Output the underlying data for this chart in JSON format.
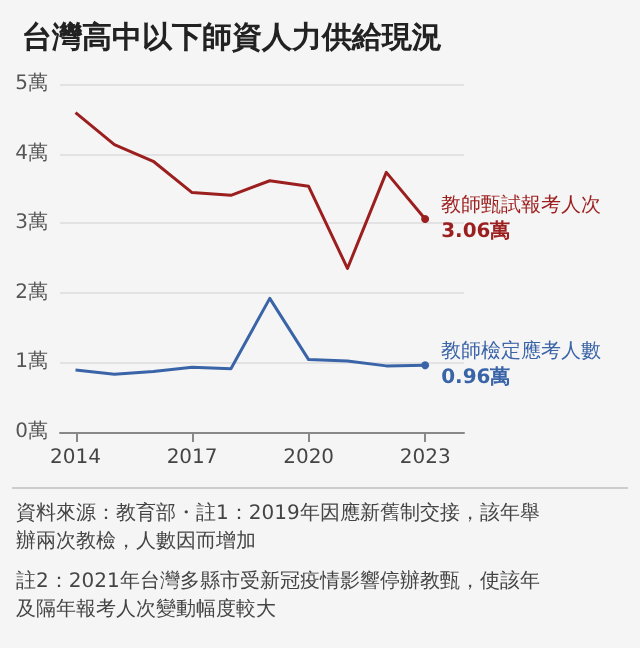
{
  "chart_data": {
    "type": "line",
    "title": "台灣高中以下師資人力供給現況",
    "x": [
      2014,
      2015,
      2016,
      2017,
      2018,
      2019,
      2020,
      2021,
      2022,
      2023
    ],
    "series": [
      {
        "name": "教師甄試報考人次",
        "color": "#9c1f1f",
        "values": [
          4.59,
          4.13,
          3.89,
          3.44,
          3.4,
          3.61,
          3.53,
          2.35,
          3.73,
          3.06
        ],
        "value_labels": [
          null,
          null,
          null,
          null,
          null,
          null,
          null,
          null,
          null,
          "3.06萬"
        ]
      },
      {
        "name": "教師檢定應考人數",
        "color": "#3a64a8",
        "values": [
          0.89,
          0.83,
          0.87,
          0.93,
          0.91,
          1.92,
          1.04,
          1.02,
          0.95,
          0.96
        ],
        "value_labels": [
          null,
          null,
          null,
          null,
          null,
          null,
          null,
          null,
          null,
          "0.96萬"
        ]
      }
    ],
    "xlim": [
      2013.6,
      2024
    ],
    "xticks": [
      2014,
      2017,
      2020,
      2023
    ],
    "ylim": [
      0,
      5
    ],
    "yticks": [
      {
        "value": 0,
        "label": "0萬"
      },
      {
        "value": 1,
        "label": "1萬"
      },
      {
        "value": 2,
        "label": "2萬"
      },
      {
        "value": 3,
        "label": "3萬"
      },
      {
        "value": 4,
        "label": "4萬"
      },
      {
        "value": 5,
        "label": "5萬"
      }
    ],
    "grid": "y",
    "legend": false,
    "annotations": [
      "資料來源：教育部・註1：2019年因應新舊制交接，該年舉辦兩次教檢，人數因而增加",
      "註2：2021年台灣多縣市受新冠疫情影響停辦教甄，使該年及隔年報考人次變動幅度較大"
    ]
  }
}
